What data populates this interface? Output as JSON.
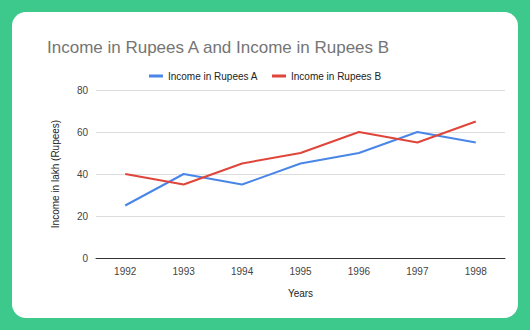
{
  "chart_data": {
    "type": "line",
    "title": "Income in Rupees A and Income in Rupees B",
    "x_label": "Years",
    "y_label": "Income in lakh (Rupees)",
    "categories": [
      "1992",
      "1993",
      "1994",
      "1995",
      "1996",
      "1997",
      "1998"
    ],
    "series": [
      {
        "name": "Income in Rupees A",
        "color": "#4a86e8",
        "values": [
          25,
          40,
          35,
          45,
          50,
          60,
          55
        ]
      },
      {
        "name": "Income in Rupees B",
        "color": "#e0453a",
        "values": [
          40,
          35,
          45,
          50,
          60,
          55,
          65
        ]
      }
    ],
    "ylim": [
      0,
      80
    ],
    "yticks": [
      0,
      20,
      40,
      60,
      80
    ],
    "grid": true,
    "legend": "top"
  }
}
